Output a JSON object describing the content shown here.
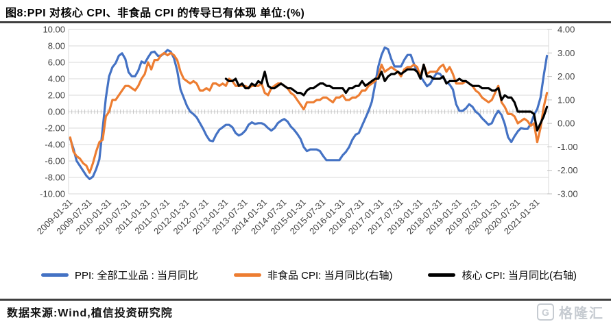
{
  "title": "图8:PPI 对核心 CPI、非食品 CPI 的传导已有体现  单位:(%)",
  "source": "数据来源:Wind,植信投资研究院",
  "watermark": {
    "icon": "G",
    "text": "格隆汇",
    "color": "#c6cbd1"
  },
  "chart_data": {
    "type": "line",
    "title": "PPI 对核心 CPI、非食品 CPI 的传导已有体现",
    "unit": "%",
    "grid": true,
    "legend_position": "bottom",
    "x_start": "2009-01",
    "x_end": "2021-04",
    "x_tick_every": 6,
    "x_tick_labels": [
      "2009-01-31",
      "2009-07-31",
      "2010-01-31",
      "2010-07-31",
      "2011-01-31",
      "2011-07-31",
      "2012-01-31",
      "2012-07-31",
      "2013-01-31",
      "2013-07-31",
      "2014-01-31",
      "2014-07-31",
      "2015-01-31",
      "2015-07-31",
      "2016-01-31",
      "2016-07-31",
      "2017-01-31",
      "2017-07-31",
      "2018-01-31",
      "2018-07-31",
      "2019-01-31",
      "2019-07-31",
      "2020-01-31",
      "2020-07-31",
      "2021-01-31"
    ],
    "left_axis": {
      "min": -10,
      "max": 10,
      "step": 2,
      "labels": [
        "10.00",
        "8.00",
        "6.00",
        "4.00",
        "2.00",
        "0.00",
        "-2.00",
        "-4.00",
        "-6.00",
        "-8.00",
        "-10.00"
      ]
    },
    "right_axis": {
      "min": -3,
      "max": 4,
      "step": 1,
      "labels": [
        "4.00",
        "3.00",
        "2.00",
        "1.00",
        "0.00",
        "-1.00",
        "-2.00",
        "-3.00"
      ]
    },
    "colors": {
      "grid": "#d9d9d9",
      "axis_text": "#404040",
      "tick": "#bfbfbf"
    },
    "series": [
      {
        "key": "ppi",
        "name": "PPI: 全部工业品 : 当月同比",
        "axis": "left",
        "color": "#4472C4",
        "values": [
          -3.3,
          -4.5,
          -6.0,
          -6.6,
          -7.2,
          -7.8,
          -8.2,
          -7.9,
          -7.0,
          -5.8,
          -2.1,
          1.7,
          4.3,
          5.4,
          5.9,
          6.8,
          7.1,
          6.4,
          4.8,
          4.3,
          4.3,
          5.0,
          6.1,
          5.9,
          6.6,
          7.2,
          7.3,
          6.8,
          6.8,
          7.1,
          7.5,
          7.3,
          6.5,
          5.0,
          2.7,
          1.7,
          0.7,
          0.0,
          -0.3,
          -0.7,
          -1.4,
          -2.1,
          -2.9,
          -3.5,
          -3.6,
          -2.8,
          -2.2,
          -1.9,
          -1.6,
          -1.6,
          -1.9,
          -2.6,
          -2.9,
          -2.7,
          -2.3,
          -1.6,
          -1.3,
          -1.5,
          -1.4,
          -1.4,
          -1.6,
          -2.0,
          -2.3,
          -2.0,
          -1.4,
          -1.1,
          -0.9,
          -1.2,
          -1.8,
          -2.2,
          -2.7,
          -3.3,
          -4.3,
          -4.8,
          -4.6,
          -4.6,
          -4.6,
          -4.8,
          -5.4,
          -5.9,
          -5.9,
          -5.9,
          -5.9,
          -5.9,
          -5.3,
          -4.9,
          -4.3,
          -3.4,
          -2.8,
          -2.6,
          -1.7,
          -0.8,
          0.1,
          1.2,
          3.3,
          5.5,
          6.9,
          7.8,
          7.6,
          6.4,
          5.5,
          5.5,
          5.5,
          6.3,
          6.9,
          6.9,
          5.8,
          4.9,
          4.3,
          3.7,
          3.1,
          3.4,
          4.1,
          4.7,
          4.6,
          4.1,
          3.6,
          3.3,
          2.7,
          0.9,
          0.1,
          0.1,
          0.4,
          0.9,
          0.6,
          0.0,
          -0.3,
          -0.8,
          -1.2,
          -1.6,
          -1.4,
          -0.5,
          0.1,
          -0.4,
          -1.5,
          -3.1,
          -3.7,
          -3.0,
          -2.4,
          -2.0,
          -2.1,
          -2.1,
          -1.5,
          -0.4,
          0.3,
          1.7,
          4.4,
          6.8
        ]
      },
      {
        "key": "nonfood_cpi",
        "name": "非食品 CPI: 当月同比(右轴)",
        "axis": "right",
        "color": "#ED7D31",
        "values": [
          -0.6,
          -1.2,
          -1.4,
          -1.5,
          -1.7,
          -1.8,
          -2.1,
          -1.7,
          -1.2,
          -0.8,
          -0.7,
          0.3,
          0.5,
          1.0,
          1.0,
          1.2,
          1.4,
          1.6,
          1.6,
          1.5,
          1.4,
          1.6,
          1.9,
          2.1,
          2.6,
          2.3,
          2.7,
          2.7,
          2.9,
          3.0,
          2.9,
          3.0,
          2.9,
          2.7,
          2.2,
          1.9,
          1.8,
          1.7,
          1.8,
          1.7,
          1.4,
          1.4,
          1.5,
          1.4,
          1.7,
          1.7,
          1.6,
          1.7,
          1.6,
          1.9,
          1.8,
          1.6,
          1.6,
          1.6,
          1.6,
          1.5,
          1.6,
          1.6,
          1.6,
          1.7,
          1.3,
          1.2,
          1.5,
          1.6,
          1.7,
          1.7,
          1.6,
          1.5,
          1.3,
          1.2,
          1.0,
          0.8,
          0.6,
          0.9,
          0.9,
          0.9,
          1.0,
          1.0,
          1.1,
          1.1,
          1.0,
          0.9,
          1.1,
          1.1,
          1.2,
          1.0,
          1.0,
          1.1,
          1.1,
          1.2,
          1.4,
          1.4,
          1.6,
          1.7,
          1.8,
          2.0,
          2.5,
          2.2,
          2.3,
          2.4,
          2.3,
          2.2,
          2.0,
          2.3,
          2.4,
          2.4,
          2.5,
          2.4,
          2.0,
          2.5,
          2.1,
          2.2,
          2.2,
          2.2,
          2.4,
          2.5,
          2.2,
          2.4,
          2.1,
          1.7,
          1.7,
          1.7,
          1.8,
          1.7,
          1.6,
          1.4,
          1.3,
          1.1,
          1.0,
          0.9,
          1.0,
          1.3,
          1.6,
          0.9,
          0.7,
          0.4,
          0.4,
          0.3,
          0.0,
          0.1,
          0.2,
          0.1,
          -0.1,
          0.0,
          -0.8,
          -0.2,
          0.7,
          1.3
        ]
      },
      {
        "key": "core_cpi",
        "name": "核心 CPI: 当月同比(右轴)",
        "axis": "right",
        "color": "#000000",
        "values": [
          null,
          null,
          null,
          null,
          null,
          null,
          null,
          null,
          null,
          null,
          null,
          null,
          null,
          null,
          null,
          null,
          null,
          null,
          null,
          null,
          null,
          null,
          null,
          null,
          null,
          null,
          null,
          null,
          null,
          null,
          null,
          null,
          null,
          null,
          null,
          null,
          null,
          null,
          null,
          null,
          null,
          null,
          null,
          null,
          null,
          null,
          null,
          null,
          1.9,
          1.8,
          1.8,
          1.9,
          1.6,
          1.7,
          1.5,
          1.5,
          1.7,
          1.6,
          1.8,
          1.7,
          2.2,
          1.6,
          1.5,
          1.5,
          1.6,
          1.7,
          1.6,
          1.5,
          1.5,
          1.4,
          1.3,
          1.3,
          1.2,
          1.4,
          1.5,
          1.5,
          1.6,
          1.7,
          1.7,
          1.6,
          1.6,
          1.5,
          1.5,
          1.5,
          1.5,
          1.3,
          1.5,
          1.5,
          1.6,
          1.6,
          1.8,
          1.6,
          1.7,
          1.8,
          1.9,
          1.9,
          2.2,
          1.8,
          2.0,
          2.1,
          2.1,
          2.2,
          2.1,
          2.2,
          2.3,
          2.3,
          2.3,
          2.2,
          1.9,
          2.5,
          2.0,
          2.0,
          1.9,
          1.9,
          1.9,
          2.0,
          1.7,
          1.8,
          1.8,
          1.8,
          1.9,
          1.8,
          1.8,
          1.7,
          1.6,
          1.6,
          1.6,
          1.5,
          1.5,
          1.5,
          1.4,
          1.4,
          1.5,
          1.0,
          1.2,
          1.1,
          1.1,
          0.9,
          0.5,
          0.5,
          0.5,
          0.5,
          0.5,
          0.4,
          -0.3,
          0.0,
          0.3,
          0.7
        ]
      }
    ]
  }
}
